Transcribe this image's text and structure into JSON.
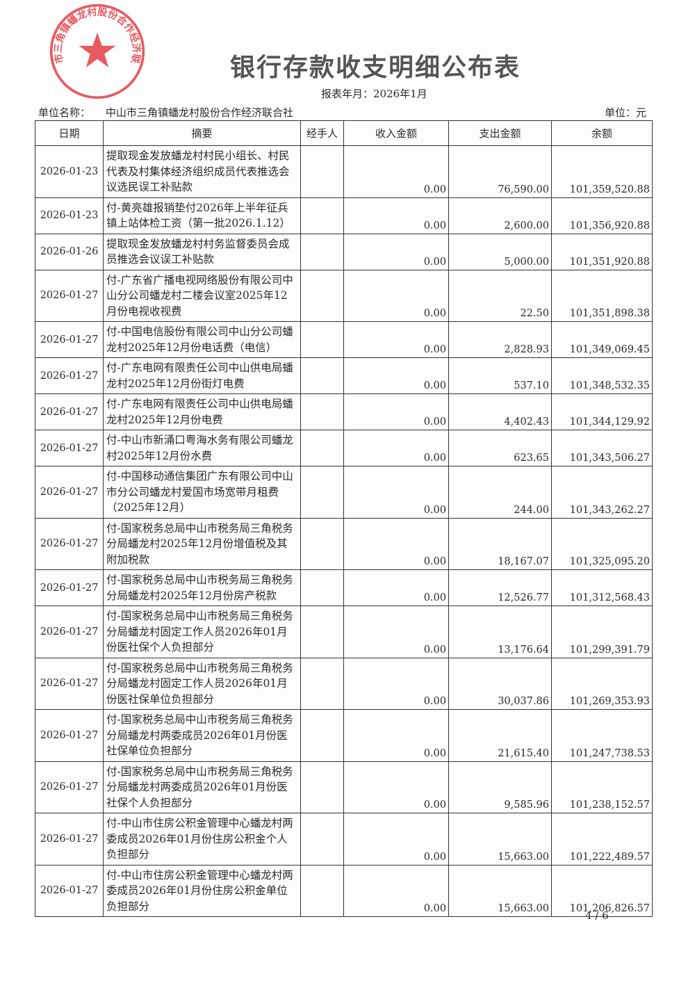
{
  "title": "银行存款收支明细公布表",
  "period": "报表年月：2026年1月",
  "unit_name_label": "单位名称：",
  "unit_name": "中山市三角镇蟠龙村股份合作经济联合社",
  "unit": "单位：元",
  "stamp": {
    "text": "中山市三角镇蟠龙村股份合作经济联合社",
    "color": "#e0242b"
  },
  "columns": [
    "日期",
    "摘要",
    "经手人",
    "收入金额",
    "支出金额",
    "余额"
  ],
  "rows": [
    {
      "date": "2026-01-23",
      "summary": "提取现金发放蟠龙村村民小组长、村民代表及村集体经济组织成员代表推选会议选民误工补贴款",
      "handler": "",
      "income": "0.00",
      "expense": "76,590.00",
      "balance": "101,359,520.88"
    },
    {
      "date": "2026-01-23",
      "summary": "付-黄亮雄报销垫付2026年上半年征兵镇上站体检工资（第一批2026.1.12）",
      "handler": "",
      "income": "0.00",
      "expense": "2,600.00",
      "balance": "101,356,920.88"
    },
    {
      "date": "2026-01-26",
      "summary": "提取现金发放蟠龙村村务监督委员会成员推选会议误工补贴款",
      "handler": "",
      "income": "0.00",
      "expense": "5,000.00",
      "balance": "101,351,920.88"
    },
    {
      "date": "2026-01-27",
      "summary": "付-广东省广播电视网络股份有限公司中山分公司蟠龙村二楼会议室2025年12月份电视收视费",
      "handler": "",
      "income": "0.00",
      "expense": "22.50",
      "balance": "101,351,898.38"
    },
    {
      "date": "2026-01-27",
      "summary": "付-中国电信股份有限公司中山分公司蟠龙村2025年12月份电话费（电信）",
      "handler": "",
      "income": "0.00",
      "expense": "2,828.93",
      "balance": "101,349,069.45"
    },
    {
      "date": "2026-01-27",
      "summary": "付-广东电网有限责任公司中山供电局蟠龙村2025年12月份街灯电费",
      "handler": "",
      "income": "0.00",
      "expense": "537.10",
      "balance": "101,348,532.35"
    },
    {
      "date": "2026-01-27",
      "summary": "付-广东电网有限责任公司中山供电局蟠龙村2025年12月份电费",
      "handler": "",
      "income": "0.00",
      "expense": "4,402.43",
      "balance": "101,344,129.92"
    },
    {
      "date": "2026-01-27",
      "summary": "付-中山市新涌口粤海水务有限公司蟠龙村2025年12月份水费",
      "handler": "",
      "income": "0.00",
      "expense": "623.65",
      "balance": "101,343,506.27"
    },
    {
      "date": "2026-01-27",
      "summary": "付-中国移动通信集团广东有限公司中山市分公司蟠龙村爱国市场宽带月租费（2025年12月）",
      "handler": "",
      "income": "0.00",
      "expense": "244.00",
      "balance": "101,343,262.27"
    },
    {
      "date": "2026-01-27",
      "summary": "付-国家税务总局中山市税务局三角税务分局蟠龙村2025年12月份增值税及其附加税款",
      "handler": "",
      "income": "0.00",
      "expense": "18,167.07",
      "balance": "101,325,095.20"
    },
    {
      "date": "2026-01-27",
      "summary": "付-国家税务总局中山市税务局三角税务分局蟠龙村2025年12月份房产税款",
      "handler": "",
      "income": "0.00",
      "expense": "12,526.77",
      "balance": "101,312,568.43"
    },
    {
      "date": "2026-01-27",
      "summary": "付-国家税务总局中山市税务局三角税务分局蟠龙村固定工作人员2026年01月份医社保个人负担部分",
      "handler": "",
      "income": "0.00",
      "expense": "13,176.64",
      "balance": "101,299,391.79"
    },
    {
      "date": "2026-01-27",
      "summary": "付-国家税务总局中山市税务局三角税务分局蟠龙村固定工作人员2026年01月份医社保单位负担部分",
      "handler": "",
      "income": "0.00",
      "expense": "30,037.86",
      "balance": "101,269,353.93"
    },
    {
      "date": "2026-01-27",
      "summary": "付-国家税务总局中山市税务局三角税务分局蟠龙村两委成员2026年01月份医社保单位负担部分",
      "handler": "",
      "income": "0.00",
      "expense": "21,615.40",
      "balance": "101,247,738.53"
    },
    {
      "date": "2026-01-27",
      "summary": "付-国家税务总局中山市税务局三角税务分局蟠龙村两委成员2026年01月份医社保个人负担部分",
      "handler": "",
      "income": "0.00",
      "expense": "9,585.96",
      "balance": "101,238,152.57"
    },
    {
      "date": "2026-01-27",
      "summary": "付-中山市住房公积金管理中心蟠龙村两委成员2026年01月份住房公积金个人负担部分",
      "handler": "",
      "income": "0.00",
      "expense": "15,663.00",
      "balance": "101,222,489.57"
    },
    {
      "date": "2026-01-27",
      "summary": "付-中山市住房公积金管理中心蟠龙村两委成员2026年01月份住房公积金单位负担部分",
      "handler": "",
      "income": "0.00",
      "expense": "15,663.00",
      "balance": "101,206,826.57"
    }
  ],
  "page_number": "4 / 6"
}
